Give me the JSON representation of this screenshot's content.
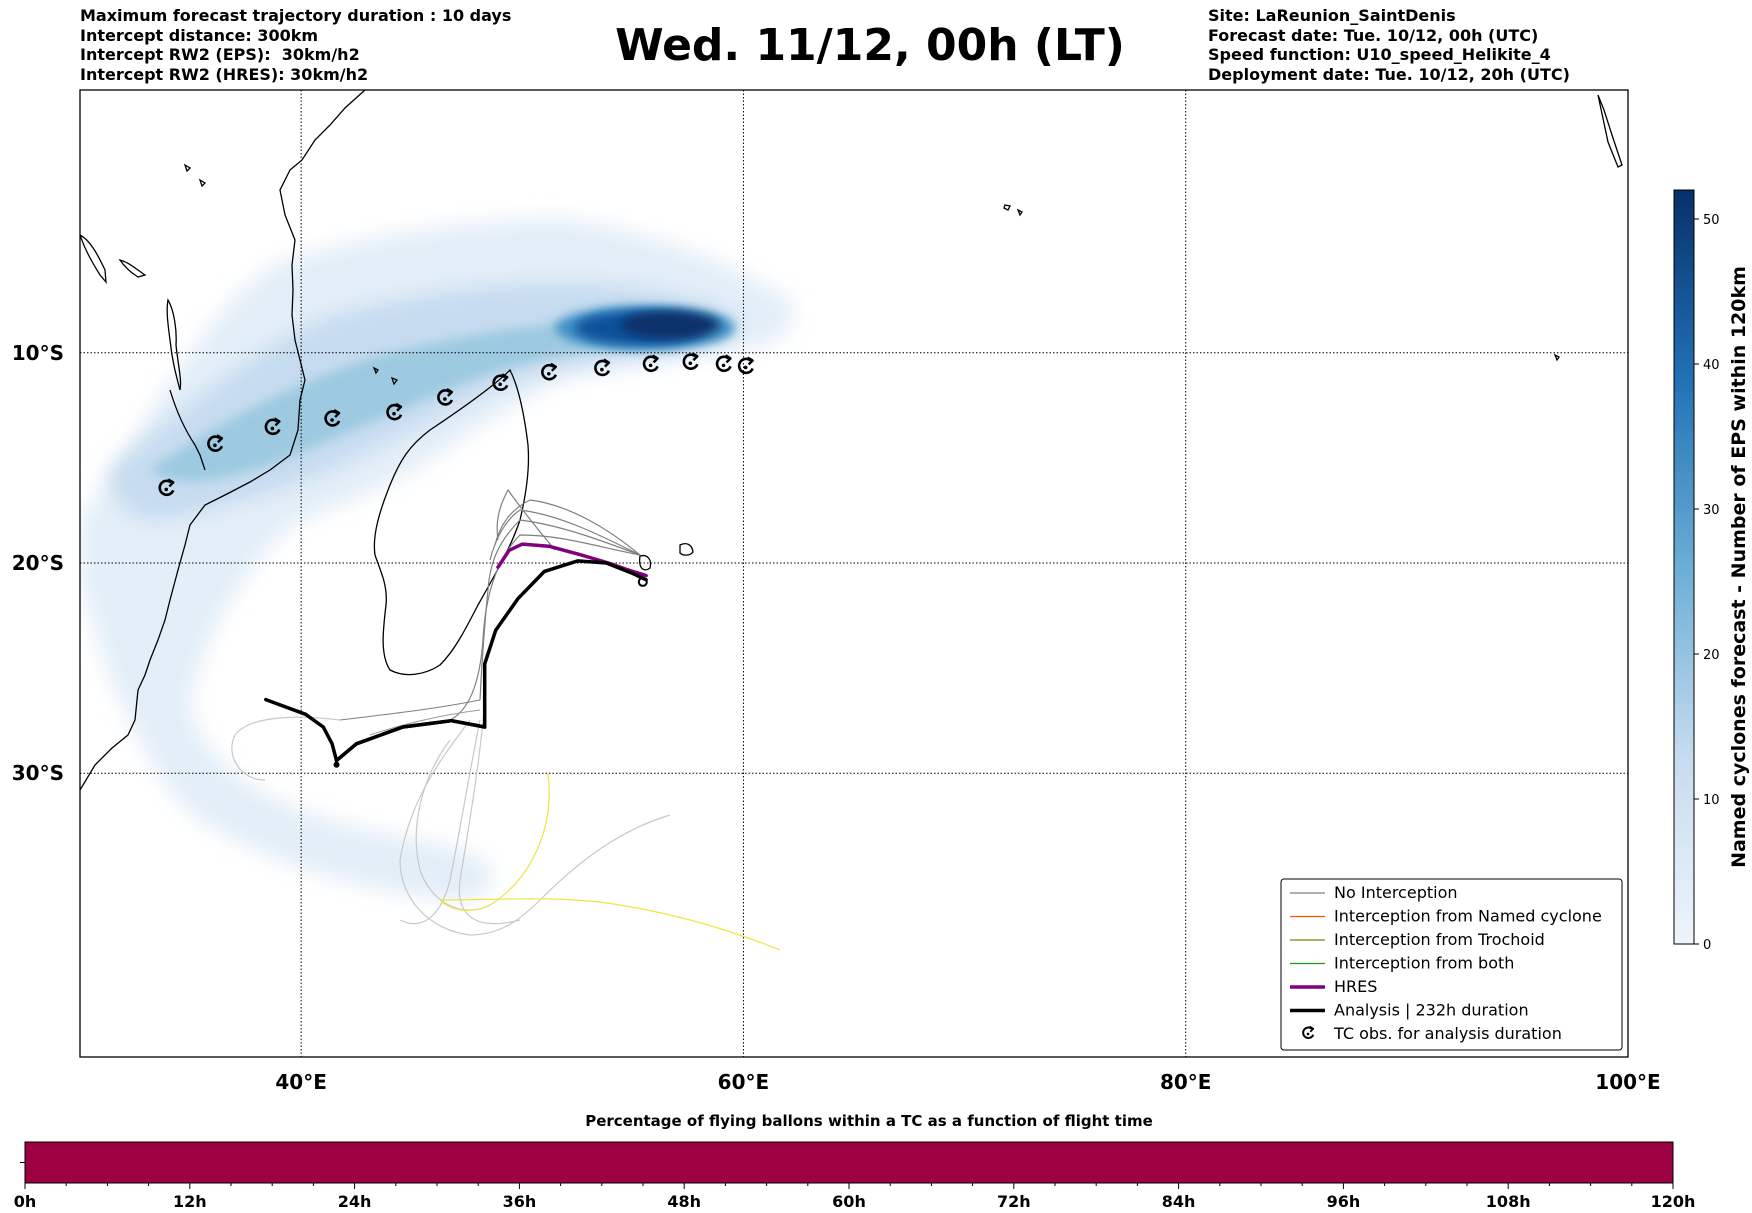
{
  "header": {
    "left_lines": [
      "Maximum forecast trajectory duration : 10 days",
      "Intercept distance: 300km",
      "Intercept RW2 (EPS):  30km/h2",
      "Intercept RW2 (HRES): 30km/h2"
    ],
    "title": "Wed. 11/12, 00h (LT)",
    "right_lines": [
      "Site: LaReunion_SaintDenis",
      "Forecast date: Tue. 10/12, 00h (UTC)",
      "Speed function: U10_speed_Helikite_4",
      "Deployment date: Tue. 10/12, 20h (UTC)"
    ]
  },
  "map": {
    "lon_range": [
      30,
      100
    ],
    "lat_range": [
      -43.5,
      2.5
    ],
    "lon_ticks": [
      {
        "lon": 40,
        "label": "40°E"
      },
      {
        "lon": 60,
        "label": "60°E"
      },
      {
        "lon": 80,
        "label": "80°E"
      },
      {
        "lon": 100,
        "label": "100°E"
      }
    ],
    "lat_ticks": [
      {
        "lat": -10,
        "label": "10°S"
      },
      {
        "lat": -20,
        "label": "20°S"
      },
      {
        "lat": -30,
        "label": "30°S"
      }
    ],
    "site": {
      "name": "LaReunion_SaintDenis",
      "lon": 55.45,
      "lat": -20.9
    },
    "tc_obs_symbol": "cyclone-icon",
    "tc_obs": [
      [
        33.9,
        -16.5
      ],
      [
        36.1,
        -14.4
      ],
      [
        38.7,
        -13.6
      ],
      [
        41.4,
        -13.2
      ],
      [
        44.2,
        -12.9
      ],
      [
        46.5,
        -12.2
      ],
      [
        49.0,
        -11.5
      ],
      [
        51.2,
        -11.0
      ],
      [
        53.6,
        -10.8
      ],
      [
        55.8,
        -10.6
      ],
      [
        57.6,
        -10.5
      ],
      [
        59.1,
        -10.6
      ],
      [
        60.1,
        -10.7
      ]
    ],
    "hres_track": [
      [
        48.9,
        -20.2
      ],
      [
        49.4,
        -19.4
      ],
      [
        50.0,
        -19.1
      ],
      [
        51.2,
        -19.2
      ],
      [
        52.6,
        -19.6
      ],
      [
        53.9,
        -20.0
      ],
      [
        54.7,
        -20.3
      ],
      [
        55.6,
        -20.6
      ]
    ],
    "analysis_track": [
      [
        41.6,
        -29.4
      ],
      [
        42.5,
        -28.6
      ],
      [
        44.6,
        -27.8
      ],
      [
        46.8,
        -27.5
      ],
      [
        48.3,
        -27.8
      ],
      [
        48.3,
        -24.8
      ],
      [
        48.8,
        -23.2
      ],
      [
        49.8,
        -21.7
      ],
      [
        51.0,
        -20.4
      ],
      [
        52.5,
        -19.9
      ],
      [
        53.8,
        -20.0
      ],
      [
        55.0,
        -20.5
      ],
      [
        55.6,
        -20.8
      ]
    ]
  },
  "colorbar_right": {
    "label": "Named cyclones forecast - Number of EPS within 120km",
    "min": 0,
    "max": 52,
    "ticks": [
      0,
      10,
      20,
      30,
      40,
      50
    ],
    "color_low": "#eef4fb",
    "color_high": "#08306b"
  },
  "legend": {
    "items": [
      {
        "label": "No Interception",
        "color": "#7f7f7f",
        "width": 1.2,
        "kind": "line"
      },
      {
        "label": "Interception from Named cyclone",
        "color": "#ff5500",
        "width": 1.2,
        "kind": "line"
      },
      {
        "label": "Interception from Trochoid",
        "color": "#808000",
        "width": 1.2,
        "kind": "line"
      },
      {
        "label": "Interception from both",
        "color": "#1a9a1a",
        "width": 1.2,
        "kind": "line"
      },
      {
        "label": "HRES",
        "color": "#800080",
        "width": 3.5,
        "kind": "line"
      },
      {
        "label": "Analysis | 232h duration",
        "color": "#000000",
        "width": 3.5,
        "kind": "line"
      },
      {
        "label": "TC obs. for analysis duration",
        "color": "#000000",
        "kind": "symbol"
      }
    ]
  },
  "bottom_bar": {
    "title": "Percentage of flying ballons within a TC as a function of flight time",
    "color": "#9e0142",
    "ticks": [
      "0h",
      "12h",
      "24h",
      "36h",
      "48h",
      "60h",
      "72h",
      "84h",
      "96h",
      "108h",
      "120h"
    ]
  }
}
